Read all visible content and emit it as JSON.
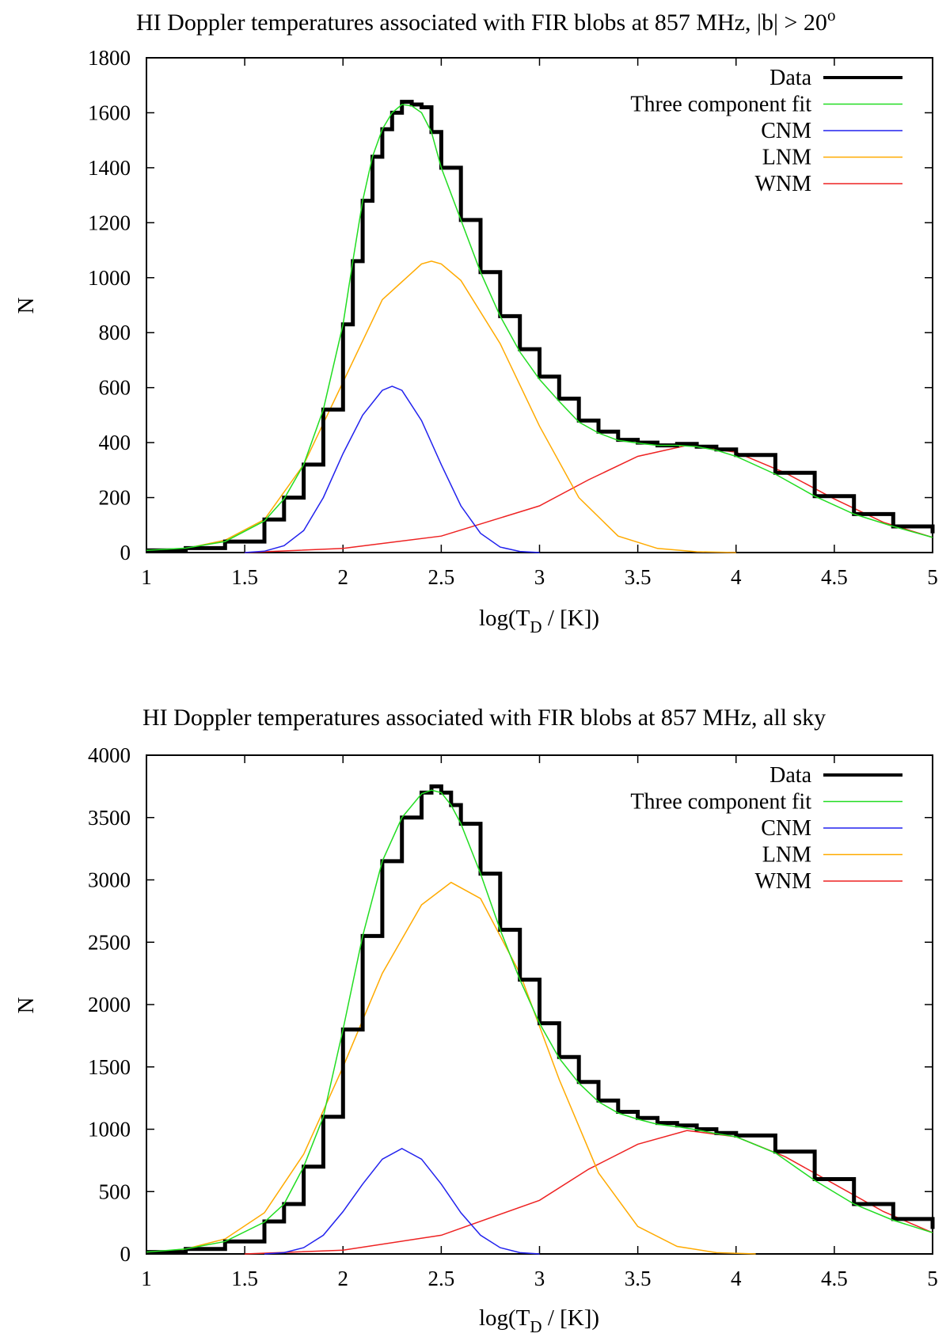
{
  "chart_data": [
    {
      "type": "line",
      "title": "HI Doppler temperatures associated with FIR blobs at 857 MHz, |b| > 20",
      "title_superscript": "o",
      "xlabel_main": "log(T",
      "xlabel_sub": "D",
      "xlabel_tail": " / [K])",
      "ylabel": "N",
      "xlim": [
        1,
        5
      ],
      "ylim": [
        0,
        1800
      ],
      "xticks": [
        "1",
        "1.5",
        "2",
        "2.5",
        "3",
        "3.5",
        "4",
        "4.5",
        "5"
      ],
      "yticks": [
        "0",
        "200",
        "400",
        "600",
        "800",
        "1000",
        "1200",
        "1400",
        "1600",
        "1800"
      ],
      "legend_position": "top-right",
      "series": [
        {
          "name": "Data",
          "color": "#000000",
          "style": "histogram-step",
          "x": [
            1.0,
            1.2,
            1.4,
            1.6,
            1.7,
            1.8,
            1.9,
            2.0,
            2.05,
            2.1,
            2.15,
            2.2,
            2.25,
            2.3,
            2.35,
            2.4,
            2.45,
            2.5,
            2.6,
            2.7,
            2.8,
            2.9,
            3.0,
            3.1,
            3.2,
            3.3,
            3.4,
            3.5,
            3.6,
            3.7,
            3.8,
            3.9,
            4.0,
            4.2,
            4.4,
            4.6,
            4.8,
            5.0
          ],
          "y": [
            8,
            16,
            40,
            120,
            200,
            320,
            520,
            830,
            1060,
            1280,
            1440,
            1540,
            1600,
            1640,
            1630,
            1620,
            1530,
            1400,
            1210,
            1020,
            860,
            740,
            640,
            560,
            480,
            440,
            410,
            400,
            390,
            395,
            385,
            375,
            355,
            290,
            205,
            140,
            95,
            70
          ]
        },
        {
          "name": "Three component fit",
          "color": "#22dd22",
          "style": "line",
          "x": [
            1.0,
            1.2,
            1.4,
            1.6,
            1.7,
            1.8,
            1.9,
            2.0,
            2.05,
            2.1,
            2.15,
            2.2,
            2.25,
            2.3,
            2.35,
            2.4,
            2.45,
            2.5,
            2.6,
            2.7,
            2.8,
            2.9,
            3.0,
            3.1,
            3.2,
            3.3,
            3.4,
            3.5,
            3.6,
            3.7,
            3.8,
            3.9,
            4.0,
            4.2,
            4.4,
            4.6,
            4.8,
            5.0
          ],
          "y": [
            8,
            16,
            40,
            115,
            195,
            320,
            520,
            830,
            1060,
            1280,
            1440,
            1540,
            1600,
            1630,
            1625,
            1600,
            1530,
            1400,
            1210,
            1020,
            860,
            730,
            630,
            550,
            475,
            435,
            408,
            398,
            390,
            390,
            385,
            372,
            350,
            285,
            205,
            140,
            95,
            55
          ]
        },
        {
          "name": "CNM",
          "color": "#2222ee",
          "style": "line",
          "x": [
            1.5,
            1.6,
            1.7,
            1.8,
            1.9,
            2.0,
            2.1,
            2.2,
            2.25,
            2.3,
            2.4,
            2.5,
            2.6,
            2.7,
            2.8,
            2.9,
            3.0
          ],
          "y": [
            0,
            5,
            25,
            80,
            200,
            360,
            500,
            590,
            605,
            590,
            480,
            320,
            170,
            70,
            20,
            4,
            0
          ]
        },
        {
          "name": "LNM",
          "color": "#ffaa00",
          "style": "line",
          "x": [
            1.0,
            1.2,
            1.4,
            1.6,
            1.8,
            2.0,
            2.2,
            2.4,
            2.45,
            2.5,
            2.6,
            2.8,
            3.0,
            3.2,
            3.4,
            3.6,
            3.8,
            4.0
          ],
          "y": [
            5,
            15,
            45,
            120,
            320,
            620,
            920,
            1050,
            1060,
            1050,
            990,
            760,
            460,
            200,
            60,
            15,
            3,
            0
          ]
        },
        {
          "name": "WNM",
          "color": "#ee2222",
          "style": "line",
          "x": [
            1.5,
            2.0,
            2.5,
            3.0,
            3.25,
            3.5,
            3.75,
            4.0,
            4.25,
            4.5,
            4.75,
            5.0
          ],
          "y": [
            0,
            15,
            60,
            170,
            265,
            350,
            390,
            365,
            290,
            195,
            110,
            55
          ]
        }
      ]
    },
    {
      "type": "line",
      "title": "HI Doppler temperatures associated with FIR blobs at 857 MHz, all sky",
      "title_superscript": "",
      "xlabel_main": "log(T",
      "xlabel_sub": "D",
      "xlabel_tail": " / [K])",
      "ylabel": "N",
      "xlim": [
        1,
        5
      ],
      "ylim": [
        0,
        4000
      ],
      "xticks": [
        "1",
        "1.5",
        "2",
        "2.5",
        "3",
        "3.5",
        "4",
        "4.5",
        "5"
      ],
      "yticks": [
        "0",
        "500",
        "1000",
        "1500",
        "2000",
        "2500",
        "3000",
        "3500",
        "4000"
      ],
      "legend_position": "top-right",
      "series": [
        {
          "name": "Data",
          "color": "#000000",
          "style": "histogram-step",
          "x": [
            1.0,
            1.2,
            1.4,
            1.6,
            1.7,
            1.8,
            1.9,
            2.0,
            2.1,
            2.2,
            2.3,
            2.4,
            2.45,
            2.5,
            2.55,
            2.6,
            2.7,
            2.8,
            2.9,
            3.0,
            3.1,
            3.2,
            3.3,
            3.4,
            3.5,
            3.6,
            3.7,
            3.8,
            3.9,
            4.0,
            4.2,
            4.4,
            4.6,
            4.8,
            5.0
          ],
          "y": [
            15,
            40,
            100,
            260,
            400,
            700,
            1100,
            1800,
            2550,
            3150,
            3500,
            3700,
            3750,
            3700,
            3600,
            3450,
            3050,
            2600,
            2200,
            1850,
            1580,
            1380,
            1230,
            1140,
            1090,
            1050,
            1030,
            1000,
            970,
            950,
            820,
            600,
            400,
            280,
            200
          ]
        },
        {
          "name": "Three component fit",
          "color": "#22dd22",
          "style": "line",
          "x": [
            1.0,
            1.2,
            1.4,
            1.6,
            1.7,
            1.8,
            1.9,
            2.0,
            2.1,
            2.2,
            2.3,
            2.4,
            2.45,
            2.5,
            2.55,
            2.6,
            2.7,
            2.8,
            2.9,
            3.0,
            3.1,
            3.2,
            3.3,
            3.4,
            3.5,
            3.6,
            3.7,
            3.8,
            3.9,
            4.0,
            4.2,
            4.4,
            4.6,
            4.8,
            5.0
          ],
          "y": [
            15,
            40,
            100,
            255,
            400,
            700,
            1100,
            1800,
            2550,
            3150,
            3500,
            3690,
            3720,
            3700,
            3600,
            3450,
            3050,
            2600,
            2200,
            1850,
            1570,
            1370,
            1220,
            1130,
            1080,
            1040,
            1020,
            995,
            965,
            940,
            810,
            590,
            400,
            270,
            170
          ]
        },
        {
          "name": "CNM",
          "color": "#2222ee",
          "style": "line",
          "x": [
            1.6,
            1.7,
            1.8,
            1.9,
            2.0,
            2.1,
            2.2,
            2.3,
            2.4,
            2.5,
            2.6,
            2.7,
            2.8,
            2.9,
            3.0
          ],
          "y": [
            0,
            10,
            50,
            150,
            340,
            560,
            760,
            845,
            760,
            560,
            330,
            150,
            50,
            10,
            0
          ]
        },
        {
          "name": "LNM",
          "color": "#ffaa00",
          "style": "line",
          "x": [
            1.0,
            1.2,
            1.4,
            1.6,
            1.8,
            2.0,
            2.2,
            2.4,
            2.55,
            2.7,
            2.9,
            3.1,
            3.3,
            3.5,
            3.7,
            3.9,
            4.1
          ],
          "y": [
            10,
            40,
            120,
            330,
            800,
            1500,
            2250,
            2800,
            2980,
            2850,
            2250,
            1400,
            650,
            220,
            60,
            10,
            0
          ]
        },
        {
          "name": "WNM",
          "color": "#ee2222",
          "style": "line",
          "x": [
            1.5,
            2.0,
            2.5,
            3.0,
            3.25,
            3.5,
            3.75,
            4.0,
            4.25,
            4.5,
            4.75,
            5.0
          ],
          "y": [
            0,
            30,
            150,
            430,
            680,
            880,
            990,
            940,
            780,
            560,
            340,
            170
          ]
        }
      ]
    }
  ]
}
